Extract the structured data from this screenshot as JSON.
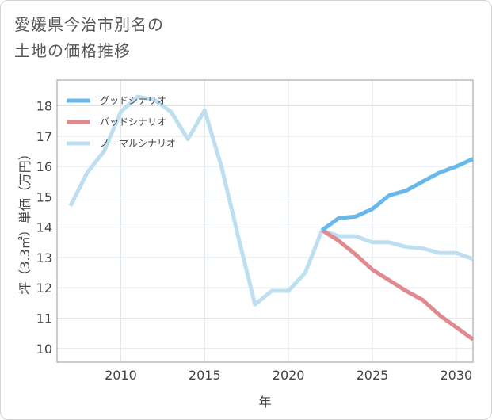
{
  "title_lines": [
    "愛媛県今治市別名の",
    "土地の価格推移"
  ],
  "chart_data": {
    "type": "line",
    "xlabel": "年",
    "ylabel": "坪（3.3㎡）単価（万円）",
    "xlim": [
      2006.2,
      2031
    ],
    "ylim": [
      9.55,
      18.85
    ],
    "x_ticks": [
      2010,
      2015,
      2020,
      2025,
      2030
    ],
    "y_ticks": [
      10,
      11,
      12,
      13,
      14,
      15,
      16,
      17,
      18
    ],
    "grid": true,
    "legend_position": "top-left",
    "series": [
      {
        "name": "ノーマルシナリオ",
        "color": "#bedff0",
        "x": [
          2007,
          2008,
          2009,
          2010,
          2011,
          2012,
          2013,
          2014,
          2015,
          2016,
          2017,
          2018,
          2019,
          2020,
          2021,
          2022,
          2023,
          2024,
          2025,
          2026,
          2027,
          2028,
          2029,
          2030,
          2031
        ],
        "values": [
          14.7,
          15.8,
          16.5,
          17.8,
          18.3,
          18.2,
          17.8,
          16.9,
          17.85,
          16.0,
          13.7,
          11.45,
          11.9,
          11.9,
          12.5,
          13.9,
          13.7,
          13.7,
          13.5,
          13.5,
          13.35,
          13.3,
          13.15,
          13.15,
          12.95
        ]
      },
      {
        "name": "バッドシナリオ",
        "color": "#e0898f",
        "x": [
          2022,
          2023,
          2024,
          2025,
          2026,
          2027,
          2028,
          2029,
          2030,
          2031
        ],
        "values": [
          13.9,
          13.55,
          13.1,
          12.6,
          12.25,
          11.9,
          11.6,
          11.1,
          10.7,
          10.3
        ]
      },
      {
        "name": "グッドシナリオ",
        "color": "#69b8ec",
        "x": [
          2022,
          2023,
          2024,
          2025,
          2026,
          2027,
          2028,
          2029,
          2030,
          2031
        ],
        "values": [
          13.9,
          14.3,
          14.35,
          14.6,
          15.05,
          15.2,
          15.5,
          15.8,
          16.0,
          16.25
        ]
      }
    ],
    "legend_order": [
      "グッドシナリオ",
      "バッドシナリオ",
      "ノーマルシナリオ"
    ]
  }
}
